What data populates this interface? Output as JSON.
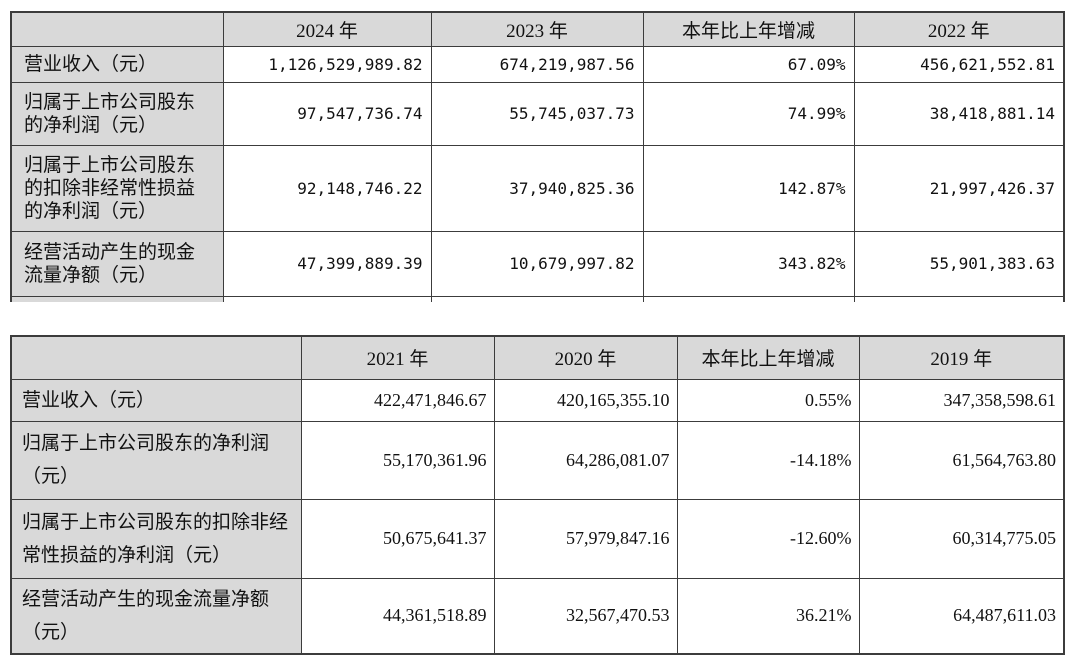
{
  "colors": {
    "header_fill": "#d9d9d9",
    "border": "#3c3c3c",
    "background": "#ffffff",
    "text": "#111111"
  },
  "tables": [
    {
      "name": "recent-three-years",
      "columns": [
        "",
        "2024 年",
        "2023 年",
        "本年比上年增减",
        "2022 年"
      ],
      "rows": [
        {
          "label": "营业收入（元）",
          "values": [
            "1,126,529,989.82",
            "674,219,987.56",
            "67.09%",
            "456,621,552.81"
          ]
        },
        {
          "label": "归属于上市公司股东的净利润（元）",
          "values": [
            "97,547,736.74",
            "55,745,037.73",
            "74.99%",
            "38,418,881.14"
          ]
        },
        {
          "label": "归属于上市公司股东的扣除非经常性损益的净利润（元）",
          "values": [
            "92,148,746.22",
            "37,940,825.36",
            "142.87%",
            "21,997,426.37"
          ]
        },
        {
          "label": "经营活动产生的现金流量净额（元）",
          "values": [
            "47,399,889.39",
            "10,679,997.82",
            "343.82%",
            "55,901,383.63"
          ]
        }
      ]
    },
    {
      "name": "earlier-three-years",
      "columns": [
        "",
        "2021 年",
        "2020 年",
        "本年比上年增减",
        "2019 年"
      ],
      "rows": [
        {
          "label": "营业收入（元）",
          "values": [
            "422,471,846.67",
            "420,165,355.10",
            "0.55%",
            "347,358,598.61"
          ]
        },
        {
          "label": "归属于上市公司股东的净利润（元）",
          "values": [
            "55,170,361.96",
            "64,286,081.07",
            "-14.18%",
            "61,564,763.80"
          ]
        },
        {
          "label": "归属于上市公司股东的扣除非经常性损益的净利润（元）",
          "values": [
            "50,675,641.37",
            "57,979,847.16",
            "-12.60%",
            "60,314,775.05"
          ]
        },
        {
          "label": "经营活动产生的现金流量净额（元）",
          "values": [
            "44,361,518.89",
            "32,567,470.53",
            "36.21%",
            "64,487,611.03"
          ]
        }
      ]
    }
  ]
}
